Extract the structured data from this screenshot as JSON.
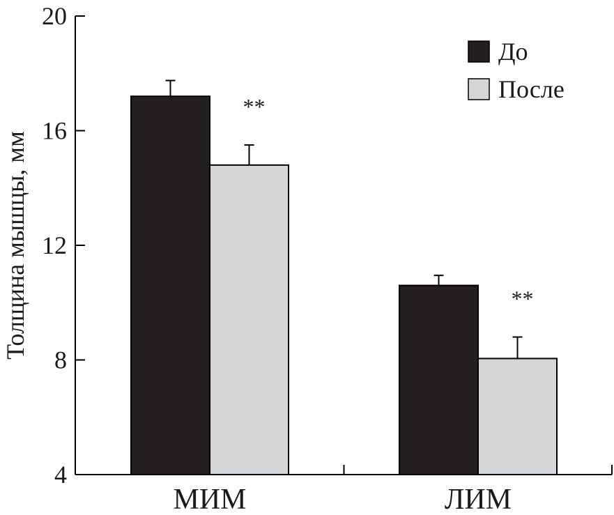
{
  "chart_data": {
    "type": "bar",
    "title": "",
    "xlabel": "",
    "ylabel": "Толщина мышцы, мм",
    "categories": [
      "МИМ",
      "ЛИМ"
    ],
    "series": [
      {
        "name": "До",
        "values": [
          17.2,
          10.6
        ],
        "errors": [
          0.55,
          0.35
        ],
        "color": "#231f20"
      },
      {
        "name": "После",
        "values": [
          14.8,
          8.05
        ],
        "errors": [
          0.7,
          0.75
        ],
        "color": "#d5d6d8"
      }
    ],
    "significance": [
      {
        "category": "МИМ",
        "series": "После",
        "label": "**"
      },
      {
        "category": "ЛИМ",
        "series": "После",
        "label": "**"
      }
    ],
    "ylim": [
      4,
      20
    ],
    "yticks": [
      4,
      8,
      12,
      16,
      20
    ],
    "legend_position": "top-right",
    "grid": false
  }
}
